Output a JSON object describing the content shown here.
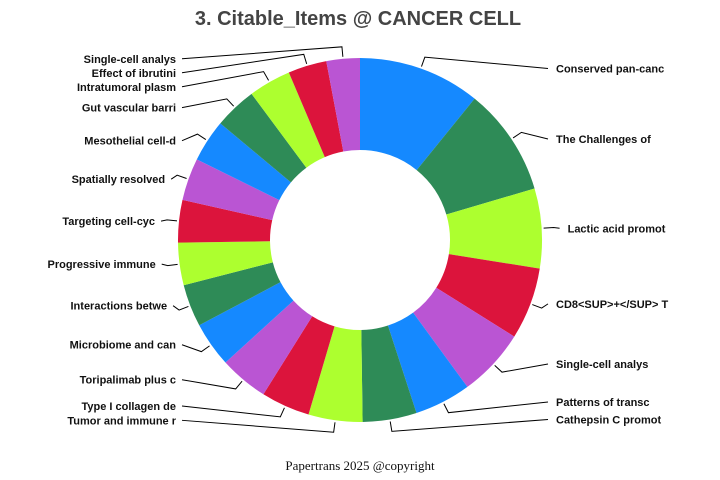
{
  "chart_data": {
    "type": "pie",
    "donut": true,
    "title": "3. Citable_Items @ CANCER CELL",
    "footer": "Papertrans 2025 @copyright",
    "colors": [
      "#1589FF",
      "#2E8B57",
      "#ADFF2F",
      "#DC143C",
      "#BA55D3"
    ],
    "slices": [
      {
        "label": "Conserved pan-canc",
        "value": 9.5
      },
      {
        "label": "The Challenges of",
        "value": 8.4
      },
      {
        "label": "Lactic acid promot",
        "value": 6.2
      },
      {
        "label": "CD8<SUP>+</SUP> T",
        "value": 5.6
      },
      {
        "label": "Single-cell analys",
        "value": 5.3
      },
      {
        "label": "Patterns of transc",
        "value": 4.4
      },
      {
        "label": "Cathepsin C promot",
        "value": 4.2
      },
      {
        "label": "Tumor and immune r",
        "value": 4.2
      },
      {
        "label": "Type I collagen de",
        "value": 3.8
      },
      {
        "label": "Toripalimab plus c",
        "value": 3.8
      },
      {
        "label": "Microbiome and can",
        "value": 3.5
      },
      {
        "label": "Interactions betwe",
        "value": 3.3
      },
      {
        "label": "Progressive immune",
        "value": 3.3
      },
      {
        "label": "Targeting cell-cyc",
        "value": 3.3
      },
      {
        "label": "Spatially resolved",
        "value": 3.3
      },
      {
        "label": "Mesothelial cell-d",
        "value": 3.3
      },
      {
        "label": "Gut vascular barri",
        "value": 3.3
      },
      {
        "label": "Intratumoral plasm",
        "value": 3.3
      },
      {
        "label": "Effect of ibrutini",
        "value": 3.0
      },
      {
        "label": "Single-cell analys",
        "value": 2.6
      }
    ]
  }
}
